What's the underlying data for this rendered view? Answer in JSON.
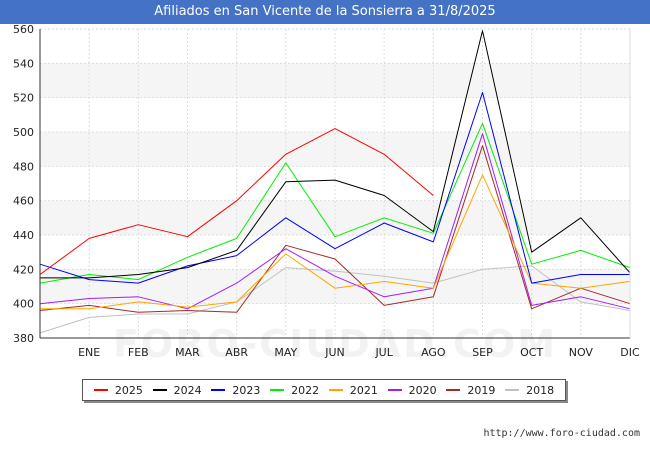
{
  "chart_data": {
    "type": "line",
    "title": "Afiliados en San Vicente de la Sonsierra a 31/8/2025",
    "categories": [
      "",
      "ENE",
      "FEB",
      "MAR",
      "ABR",
      "MAY",
      "JUN",
      "JUL",
      "AGO",
      "SEP",
      "OCT",
      "NOV",
      "DIC"
    ],
    "xlabel": "",
    "ylabel": "",
    "ylim": [
      380,
      560
    ],
    "yticks": [
      380,
      400,
      420,
      440,
      460,
      480,
      500,
      520,
      540,
      560
    ],
    "grid": true,
    "legend_position": "bottom",
    "series": [
      {
        "name": "2025",
        "color": "#ff0000",
        "values": [
          417,
          438,
          446,
          439,
          460,
          487,
          502,
          487,
          463,
          null,
          null,
          null,
          null
        ]
      },
      {
        "name": "2024",
        "color": "#000000",
        "values": [
          415,
          415,
          417,
          421,
          431,
          471,
          472,
          463,
          442,
          559,
          430,
          450,
          418
        ]
      },
      {
        "name": "2023",
        "color": "#0000ff",
        "values": [
          423,
          414,
          412,
          422,
          428,
          450,
          432,
          447,
          436,
          523,
          412,
          417,
          417
        ]
      },
      {
        "name": "2022",
        "color": "#00ee00",
        "values": [
          412,
          417,
          414,
          427,
          438,
          482,
          439,
          450,
          441,
          505,
          423,
          431,
          421
        ]
      },
      {
        "name": "2021",
        "color": "#ffa500",
        "values": [
          397,
          397,
          401,
          398,
          401,
          429,
          409,
          413,
          409,
          475,
          412,
          409,
          413
        ]
      },
      {
        "name": "2020",
        "color": "#a020f0",
        "values": [
          400,
          403,
          404,
          397,
          412,
          432,
          416,
          404,
          409,
          499,
          399,
          404,
          397
        ]
      },
      {
        "name": "2019",
        "color": "#a52a2a",
        "values": [
          396,
          399,
          395,
          396,
          395,
          434,
          426,
          399,
          404,
          492,
          397,
          409,
          400
        ]
      },
      {
        "name": "2018",
        "color": "#c0c0c0",
        "values": [
          383,
          392,
          394,
          394,
          401,
          421,
          419,
          416,
          412,
          420,
          422,
          401,
          396
        ]
      }
    ]
  },
  "legend": {
    "items": [
      {
        "label": "2025",
        "color": "#ff0000"
      },
      {
        "label": "2024",
        "color": "#000000"
      },
      {
        "label": "2023",
        "color": "#0000ff"
      },
      {
        "label": "2022",
        "color": "#00ee00"
      },
      {
        "label": "2021",
        "color": "#ffa500"
      },
      {
        "label": "2020",
        "color": "#a020f0"
      },
      {
        "label": "2019",
        "color": "#a52a2a"
      },
      {
        "label": "2018",
        "color": "#c0c0c0"
      }
    ]
  },
  "watermark": "FORO-CIUDAD.COM",
  "source": "http://www.foro-ciudad.com"
}
